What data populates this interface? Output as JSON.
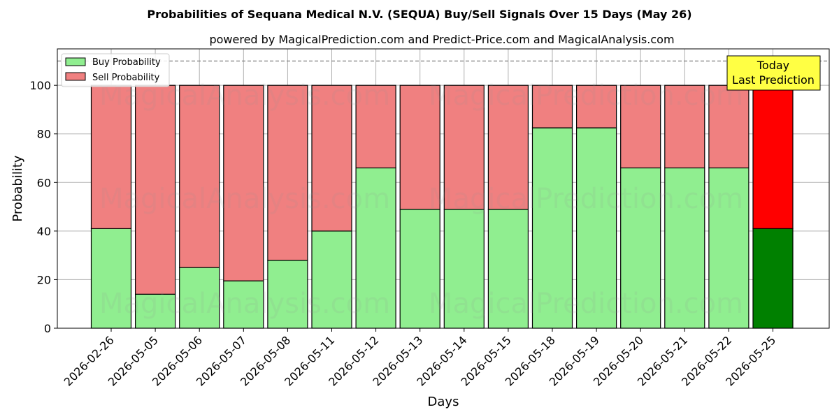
{
  "chart_data": {
    "type": "bar",
    "stacked": true,
    "title": "Probabilities of Sequana Medical N.V. (SEQUA) Buy/Sell Signals Over 15 Days (May 26)",
    "subtitle": "powered by MagicalPrediction.com and Predict-Price.com and MagicalAnalysis.com",
    "xlabel": "Days",
    "ylabel": "Probability",
    "ylim": [
      0,
      115
    ],
    "yticks": [
      0,
      20,
      40,
      60,
      80,
      100
    ],
    "grid": true,
    "legend_position": "top-left",
    "reference_line": 110,
    "categories": [
      "2026-02-26",
      "2026-05-05",
      "2026-05-06",
      "2026-05-07",
      "2026-05-08",
      "2026-05-11",
      "2026-05-12",
      "2026-05-13",
      "2026-05-14",
      "2026-05-15",
      "2026-05-18",
      "2026-05-19",
      "2026-05-20",
      "2026-05-21",
      "2026-05-22",
      "2026-05-25"
    ],
    "series": [
      {
        "name": "Buy Probability",
        "color": "#90ee90",
        "highlight_color": "#008000",
        "values": [
          41,
          14,
          25,
          19.5,
          28,
          40,
          66,
          49,
          49,
          49,
          82.5,
          82.5,
          66,
          66,
          66,
          41
        ]
      },
      {
        "name": "Sell Probability",
        "color": "#f08080",
        "highlight_color": "#ff0000",
        "values": [
          59,
          86,
          75,
          80.5,
          72,
          60,
          34,
          51,
          51,
          51,
          17.5,
          17.5,
          34,
          34,
          34,
          59
        ]
      }
    ],
    "annotation": {
      "lines": [
        "Today",
        "Last Prediction"
      ],
      "color": "#ffff44"
    },
    "watermarks": [
      "MagicalAnalysis.com",
      "MagicalPrediction.com"
    ]
  }
}
